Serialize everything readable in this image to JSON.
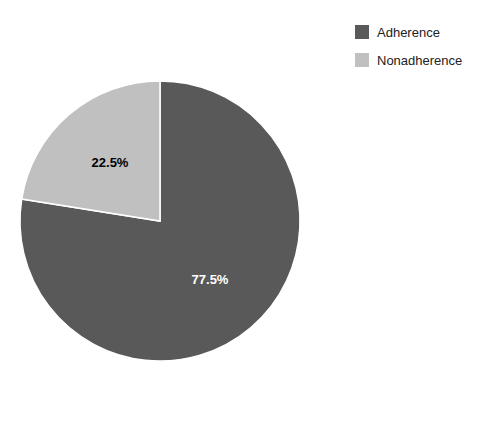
{
  "chart_data": {
    "type": "pie",
    "categories": [
      "Adherence",
      "Nonadherence"
    ],
    "values": [
      77.5,
      22.5
    ],
    "value_labels": [
      "77.5%",
      "22.5%"
    ],
    "colors": [
      "#595959",
      "#c0c0c0"
    ],
    "data_labels": true,
    "legend": "upper right"
  }
}
